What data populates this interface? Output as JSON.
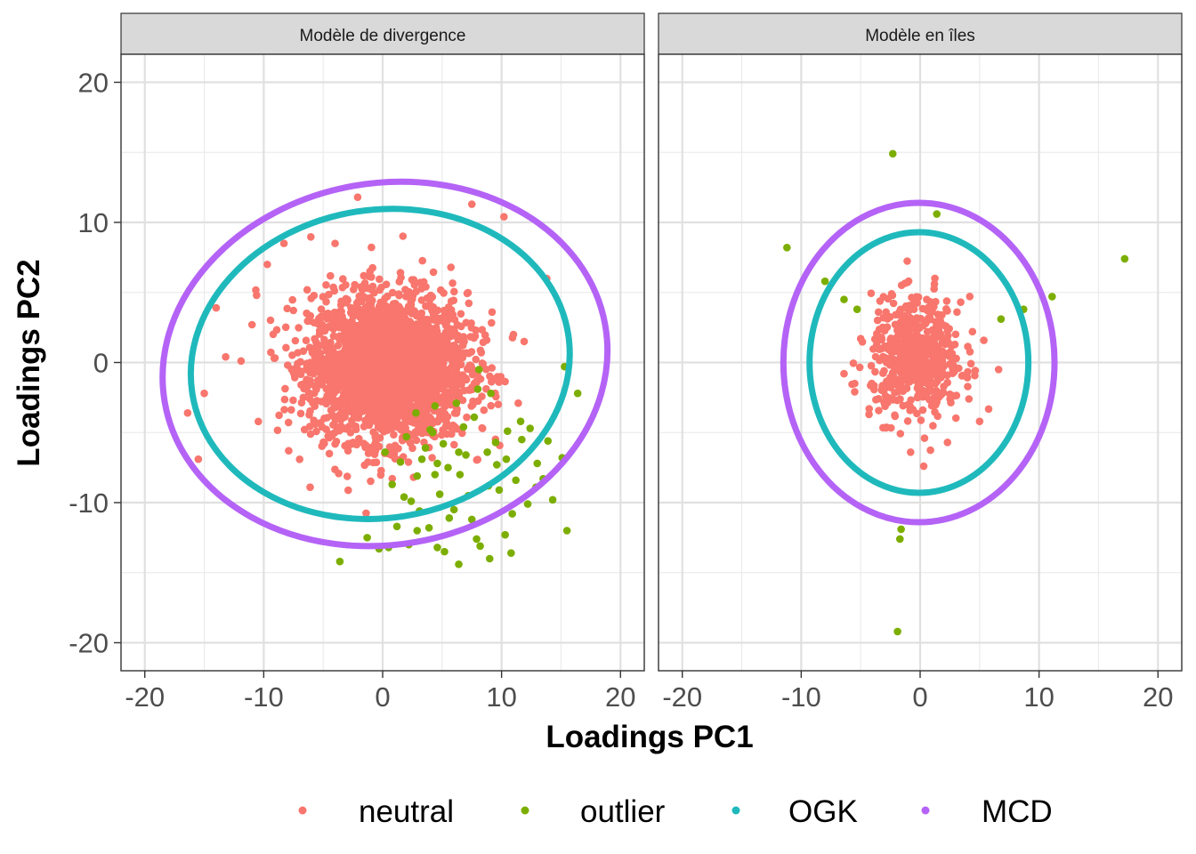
{
  "chart_data": {
    "type": "scatter",
    "xlabel": "Loadings PC1",
    "ylabel": "Loadings PC2",
    "xlim": [
      -22,
      22
    ],
    "ylim": [
      -22,
      22
    ],
    "xticks": [
      -20,
      -10,
      0,
      10,
      20
    ],
    "yticks": [
      -20,
      -10,
      0,
      10,
      20
    ],
    "tick_labels": [
      "-20",
      "-10",
      "0",
      "10",
      "20"
    ],
    "grid": true,
    "legend": {
      "placement": "bottom",
      "entries": [
        {
          "label": "neutral",
          "color": "#F8766D"
        },
        {
          "label": "outlier",
          "color": "#7CAE00"
        },
        {
          "label": "OGK",
          "color": "#1FB9BC"
        },
        {
          "label": "MCD",
          "color": "#B463F6"
        }
      ]
    },
    "panels": [
      {
        "title": "Modèle de divergence",
        "neutral_cloud": {
          "center": [
            0.5,
            -0.3
          ],
          "sd": [
            3.3,
            2.6
          ],
          "n_points": 2600
        },
        "neutral_extra": [
          [
            -2.1,
            11.8
          ],
          [
            7.5,
            11.3
          ],
          [
            10.2,
            10.4
          ],
          [
            -8.3,
            8.5
          ],
          [
            -4.0,
            8.5
          ],
          [
            -9.7,
            7.0
          ],
          [
            -14.0,
            3.9
          ],
          [
            -13.2,
            0.4
          ],
          [
            -15.0,
            -2.2
          ],
          [
            -16.4,
            -3.6
          ],
          [
            -15.5,
            -6.9
          ],
          [
            -6.1,
            -8.9
          ],
          [
            13.8,
            6.0
          ],
          [
            11.9,
            1.5
          ],
          [
            -10.6,
            4.8
          ],
          [
            -7.9,
            -6.3
          ],
          [
            11.0,
            2.0
          ],
          [
            9.2,
            3.6
          ]
        ],
        "outliers": [
          [
            -3.6,
            -14.2
          ],
          [
            -1.3,
            -12.5
          ],
          [
            -0.3,
            -13.3
          ],
          [
            2.2,
            -13.0
          ],
          [
            2.9,
            -12.0
          ],
          [
            4.6,
            -13.2
          ],
          [
            6.4,
            -14.4
          ],
          [
            8.2,
            -13.1
          ],
          [
            9.0,
            -14.0
          ],
          [
            10.3,
            -12.3
          ],
          [
            10.8,
            -13.6
          ],
          [
            12.9,
            -8.9
          ],
          [
            13.5,
            -8.3
          ],
          [
            15.1,
            -6.8
          ],
          [
            15.5,
            -12.0
          ],
          [
            16.4,
            -2.2
          ],
          [
            15.3,
            -0.3
          ],
          [
            12.4,
            -4.7
          ],
          [
            13.0,
            -7.2
          ],
          [
            11.7,
            -5.5
          ],
          [
            10.5,
            -4.9
          ],
          [
            9.1,
            -2.2
          ],
          [
            8.8,
            -6.4
          ],
          [
            8.0,
            -1.9
          ],
          [
            7.7,
            -3.9
          ],
          [
            8.1,
            -0.5
          ],
          [
            6.4,
            -6.4
          ],
          [
            6.2,
            -2.9
          ],
          [
            5.5,
            -7.5
          ],
          [
            5.6,
            -11.1
          ],
          [
            4.8,
            -9.4
          ],
          [
            4.4,
            -8.0
          ],
          [
            4.2,
            -5.0
          ],
          [
            3.3,
            -6.9
          ],
          [
            2.9,
            -8.1
          ],
          [
            2.4,
            -9.9
          ],
          [
            1.8,
            -9.6
          ],
          [
            1.5,
            -7.1
          ],
          [
            0.8,
            -8.7
          ],
          [
            0.2,
            -6.4
          ],
          [
            3.9,
            -11.8
          ],
          [
            6.0,
            -10.5
          ],
          [
            7.2,
            -9.5
          ],
          [
            7.9,
            -12.6
          ],
          [
            9.6,
            -7.3
          ],
          [
            10.4,
            -6.9
          ],
          [
            12.2,
            -10.1
          ],
          [
            8.9,
            -8.8
          ],
          [
            2.8,
            -3.6
          ],
          [
            4.0,
            -4.8
          ],
          [
            5.1,
            -5.8
          ],
          [
            6.8,
            -4.6
          ],
          [
            9.5,
            -5.7
          ],
          [
            11.2,
            -8.4
          ],
          [
            3.1,
            -10.6
          ],
          [
            1.2,
            -11.7
          ],
          [
            4.6,
            -7.2
          ],
          [
            6.5,
            -8.0
          ],
          [
            10.9,
            -10.8
          ],
          [
            14.3,
            -9.8
          ],
          [
            0.5,
            -13.2
          ],
          [
            5.2,
            -13.5
          ],
          [
            7.5,
            -11.2
          ],
          [
            3.6,
            -6.1
          ],
          [
            11.6,
            -4.2
          ],
          [
            13.9,
            -5.6
          ],
          [
            9.8,
            -9.1
          ],
          [
            2.0,
            -5.3
          ],
          [
            4.4,
            -3.1
          ],
          [
            7.0,
            -6.6
          ]
        ],
        "ellipses": [
          {
            "name": "OGK",
            "color": "#1FB9BC",
            "center": [
              -0.2,
              -0.1
            ],
            "radii": [
              16.0,
              11.0
            ],
            "angle_deg": 9
          },
          {
            "name": "MCD",
            "color": "#B463F6",
            "center": [
              0.2,
              -0.1
            ],
            "radii": [
              18.8,
              12.9
            ],
            "angle_deg": 10
          }
        ]
      },
      {
        "title": "Modèle en îles",
        "neutral_cloud": {
          "center": [
            -0.3,
            0.3
          ],
          "sd": [
            1.9,
            2.1
          ],
          "n_points": 520
        },
        "neutral_extra": [
          [
            0.3,
            -7.4
          ],
          [
            -0.8,
            -6.4
          ],
          [
            2.3,
            -5.7
          ],
          [
            -3.5,
            3.6
          ],
          [
            -6.4,
            -0.8
          ],
          [
            -5.0,
            1.7
          ],
          [
            4.4,
            2.2
          ],
          [
            6.6,
            -0.5
          ],
          [
            -2.4,
            4.9
          ],
          [
            1.2,
            5.6
          ],
          [
            -4.3,
            -3.7
          ],
          [
            5.0,
            -4.2
          ],
          [
            -5.5,
            -1.5
          ],
          [
            3.1,
            3.6
          ]
        ],
        "outliers": [
          [
            -2.3,
            14.9
          ],
          [
            -11.2,
            8.2
          ],
          [
            1.4,
            10.6
          ],
          [
            17.2,
            7.4
          ],
          [
            11.1,
            4.7
          ],
          [
            8.7,
            3.8
          ],
          [
            6.8,
            3.1
          ],
          [
            -8.0,
            5.8
          ],
          [
            -6.4,
            4.5
          ],
          [
            -5.3,
            3.8
          ],
          [
            -1.6,
            -11.9
          ],
          [
            -1.7,
            -12.6
          ],
          [
            -1.9,
            -19.2
          ]
        ],
        "ellipses": [
          {
            "name": "OGK",
            "color": "#1FB9BC",
            "center": [
              -0.1,
              0.0
            ],
            "radii": [
              9.2,
              9.3
            ],
            "angle_deg": 0
          },
          {
            "name": "MCD",
            "color": "#B463F6",
            "center": [
              -0.1,
              0.0
            ],
            "radii": [
              11.4,
              11.4
            ],
            "angle_deg": 0
          }
        ]
      }
    ]
  }
}
